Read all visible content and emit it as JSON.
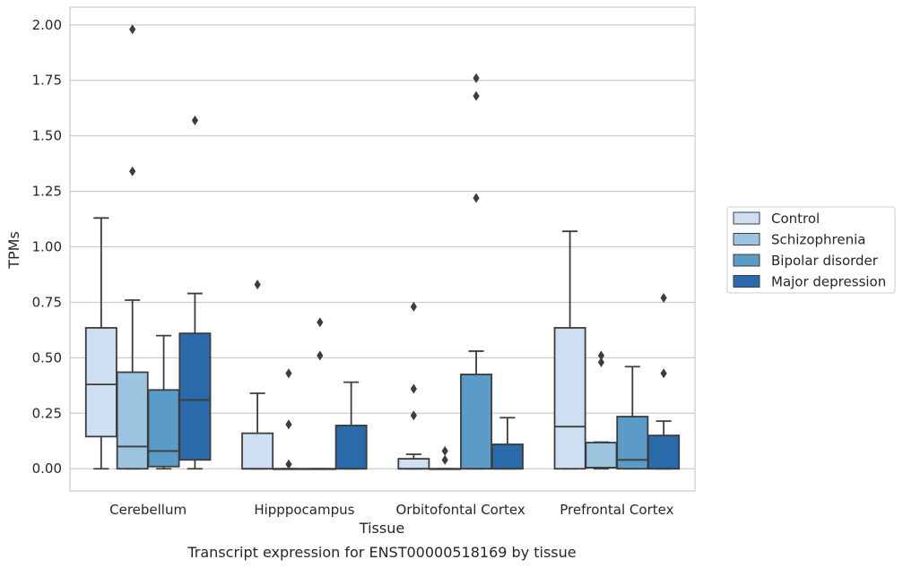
{
  "chart_data": {
    "type": "boxplot",
    "title": "Transcript expression for ENST00000518169 by tissue",
    "xlabel": "Tissue",
    "ylabel": "TPMs",
    "ylim": [
      -0.1,
      2.08
    ],
    "yticks": [
      "0.00",
      "0.25",
      "0.50",
      "0.75",
      "1.00",
      "1.25",
      "1.50",
      "1.75",
      "2.00"
    ],
    "ytick_values": [
      0,
      0.25,
      0.5,
      0.75,
      1.0,
      1.25,
      1.5,
      1.75,
      2.0
    ],
    "categories": [
      "Cerebellum",
      "Hipppocampus",
      "Orbitofontal Cortex",
      "Prefrontal Cortex"
    ],
    "grid": "horizontal",
    "legend_position": "right",
    "series": [
      {
        "name": "Control",
        "color": "#cddff0",
        "boxes": [
          {
            "whislo": 0.0,
            "q1": 0.145,
            "med": 0.38,
            "q3": 0.635,
            "whishi": 1.13,
            "fliers": []
          },
          {
            "whislo": 0.0,
            "q1": 0.0,
            "med": 0.0,
            "q3": 0.16,
            "whishi": 0.34,
            "fliers": [
              0.83
            ]
          },
          {
            "whislo": 0.0,
            "q1": 0.0,
            "med": 0.0,
            "q3": 0.045,
            "whishi": 0.065,
            "fliers": [
              0.24,
              0.36,
              0.73
            ]
          },
          {
            "whislo": 0.0,
            "q1": 0.0,
            "med": 0.19,
            "q3": 0.635,
            "whishi": 1.07,
            "fliers": []
          }
        ]
      },
      {
        "name": "Schizophrenia",
        "color": "#9dc4de",
        "boxes": [
          {
            "whislo": 0.0,
            "q1": 0.0,
            "med": 0.1,
            "q3": 0.435,
            "whishi": 0.76,
            "fliers": [
              1.34,
              1.98
            ]
          },
          {
            "whislo": 0.0,
            "q1": 0.0,
            "med": 0.0,
            "q3": 0.0,
            "whishi": 0.0,
            "fliers": [
              0.02,
              0.2,
              0.43
            ]
          },
          {
            "whislo": 0.0,
            "q1": 0.0,
            "med": 0.0,
            "q3": 0.0,
            "whishi": 0.0,
            "fliers": [
              0.04,
              0.08
            ]
          },
          {
            "whislo": 0.0,
            "q1": 0.005,
            "med": 0.005,
            "q3": 0.118,
            "whishi": 0.12,
            "fliers": [
              0.48,
              0.51
            ]
          }
        ]
      },
      {
        "name": "Bipolar disorder",
        "color": "#5a9bc8",
        "boxes": [
          {
            "whislo": 0.0,
            "q1": 0.01,
            "med": 0.08,
            "q3": 0.355,
            "whishi": 0.6,
            "fliers": []
          },
          {
            "whislo": 0.0,
            "q1": 0.0,
            "med": 0.0,
            "q3": 0.0,
            "whishi": 0.0,
            "fliers": [
              0.51,
              0.66
            ]
          },
          {
            "whislo": 0.0,
            "q1": 0.0,
            "med": 0.0,
            "q3": 0.425,
            "whishi": 0.53,
            "fliers": [
              1.22,
              1.68,
              1.76
            ]
          },
          {
            "whislo": 0.0,
            "q1": 0.0,
            "med": 0.04,
            "q3": 0.235,
            "whishi": 0.46,
            "fliers": []
          }
        ]
      },
      {
        "name": "Major depression",
        "color": "#2a6aab",
        "boxes": [
          {
            "whislo": 0.0,
            "q1": 0.04,
            "med": 0.31,
            "q3": 0.61,
            "whishi": 0.79,
            "fliers": [
              1.57
            ]
          },
          {
            "whislo": 0.0,
            "q1": 0.0,
            "med": 0.0,
            "q3": 0.195,
            "whishi": 0.39,
            "fliers": []
          },
          {
            "whislo": 0.0,
            "q1": 0.0,
            "med": 0.0,
            "q3": 0.11,
            "whishi": 0.23,
            "fliers": []
          },
          {
            "whislo": 0.0,
            "q1": 0.0,
            "med": 0.0,
            "q3": 0.15,
            "whishi": 0.215,
            "fliers": [
              0.43,
              0.77
            ]
          }
        ]
      }
    ]
  }
}
